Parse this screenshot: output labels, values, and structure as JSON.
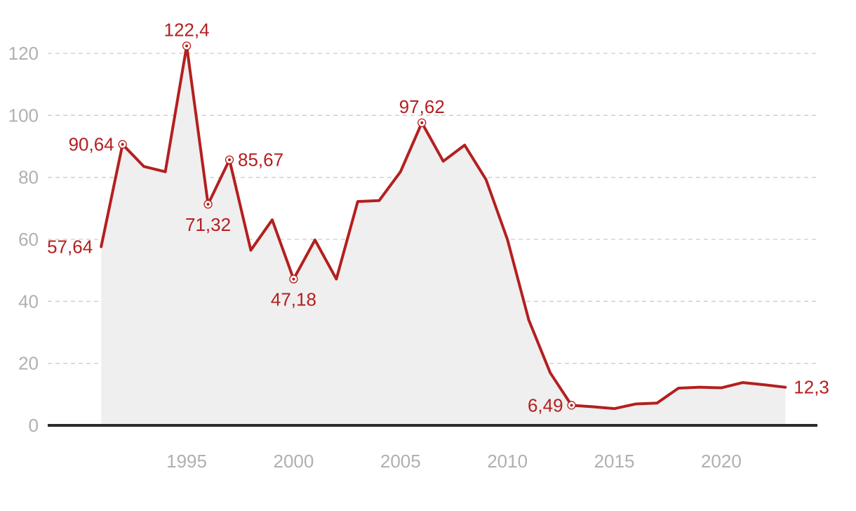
{
  "chart_data": {
    "type": "area",
    "title": "",
    "xlabel": "",
    "ylabel": "",
    "xlim": [
      1988.5,
      2024.5
    ],
    "ylim": [
      0,
      120
    ],
    "y_ticks": [
      "0",
      "20",
      "40",
      "60",
      "80",
      "100",
      "120"
    ],
    "x_ticks": [
      "1995",
      "2000",
      "2005",
      "2010",
      "2015",
      "2020"
    ],
    "grid": true,
    "colors": {
      "line": "#b41f1f",
      "area": "#efefef",
      "grid": "#cccccc",
      "axis": "#2b2b2b",
      "tick": "#b0b0b0"
    },
    "series": [
      {
        "x": [
          1991,
          1992,
          1993,
          1994,
          1995,
          1996,
          1997,
          1998,
          1999,
          2000,
          2001,
          2002,
          2003,
          2004,
          2005,
          2006,
          2007,
          2008,
          2009,
          2010,
          2011,
          2012,
          2013,
          2014,
          2015,
          2016,
          2017,
          2018,
          2019,
          2020,
          2021,
          2022,
          2023
        ],
        "y": [
          57.64,
          90.64,
          83.5,
          81.8,
          122.4,
          71.32,
          85.67,
          56.5,
          66.3,
          47.18,
          59.8,
          47.2,
          72.2,
          72.5,
          81.8,
          97.62,
          85.2,
          90.4,
          79.3,
          60.0,
          34.0,
          17.0,
          6.49,
          6.0,
          5.4,
          6.9,
          7.2,
          12.0,
          12.3,
          12.1,
          13.8,
          13.1,
          12.3
        ]
      }
    ],
    "annotations": [
      {
        "x": 1991,
        "y": 57.64,
        "text": "57,64",
        "marker": false,
        "pos": "left"
      },
      {
        "x": 1992,
        "y": 90.64,
        "text": "90,64",
        "marker": true,
        "pos": "left"
      },
      {
        "x": 1995,
        "y": 122.4,
        "text": "122,4",
        "marker": true,
        "pos": "above"
      },
      {
        "x": 1996,
        "y": 71.32,
        "text": "71,32",
        "marker": true,
        "pos": "below"
      },
      {
        "x": 1997,
        "y": 85.67,
        "text": "85,67",
        "marker": true,
        "pos": "right"
      },
      {
        "x": 2000,
        "y": 47.18,
        "text": "47,18",
        "marker": true,
        "pos": "below"
      },
      {
        "x": 2006,
        "y": 97.62,
        "text": "97,62",
        "marker": true,
        "pos": "above"
      },
      {
        "x": 2013,
        "y": 6.49,
        "text": "6,49",
        "marker": true,
        "pos": "left"
      },
      {
        "x": 2023,
        "y": 12.3,
        "text": "12,3",
        "marker": false,
        "pos": "right"
      }
    ]
  }
}
